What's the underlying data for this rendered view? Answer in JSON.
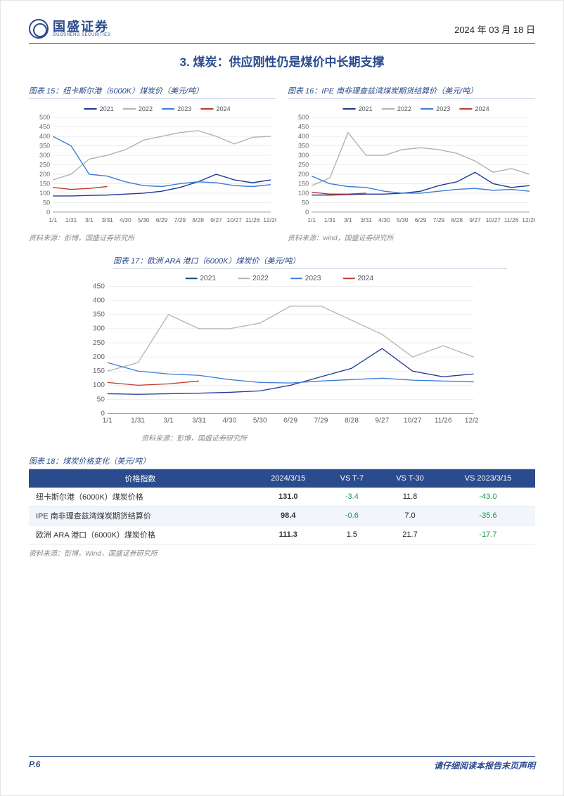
{
  "header": {
    "company_cn": "国盛证券",
    "company_en": "GUOSHENG SECURITIES",
    "date": "2024 年 03 月 18 日"
  },
  "section_title": "3. 煤炭：供应刚性仍是煤价中长期支撑",
  "charts_common": {
    "x_labels": [
      "1/1",
      "1/31",
      "3/1",
      "3/31",
      "4/30",
      "5/30",
      "6/29",
      "7/29",
      "8/28",
      "9/27",
      "10/27",
      "11/26",
      "12/26"
    ],
    "legend": [
      "2021",
      "2022",
      "2023",
      "2024"
    ],
    "colors": {
      "2021": "#1f3a93",
      "2022": "#b3b3b3",
      "2023": "#3b7dd8",
      "2024": "#c0392b"
    },
    "grid_color": "#e0e0e0",
    "tick_color": "#666666",
    "line_width": 1.4
  },
  "chart15": {
    "title": "图表 15：纽卡斯尔港（6000K）煤炭价（美元/吨）",
    "source": "资料来源：彭博，国盛证券研究所",
    "ylim": [
      0,
      500
    ],
    "ytick_step": 50,
    "series": {
      "2021": [
        85,
        85,
        88,
        90,
        95,
        100,
        110,
        130,
        160,
        200,
        170,
        155,
        170
      ],
      "2022": [
        170,
        200,
        280,
        300,
        330,
        380,
        400,
        420,
        430,
        400,
        360,
        395,
        400
      ],
      "2023": [
        400,
        350,
        200,
        190,
        160,
        140,
        135,
        150,
        160,
        155,
        140,
        135,
        145
      ],
      "2024": [
        130,
        120,
        125,
        135
      ]
    }
  },
  "chart16": {
    "title": "图表 16：IPE 南非理查兹湾煤炭期货结算价（美元/吨）",
    "source": "资料来源：wind，国盛证券研究所",
    "ylim": [
      0,
      500
    ],
    "ytick_step": 50,
    "series": {
      "2021": [
        90,
        90,
        92,
        95,
        95,
        100,
        110,
        140,
        160,
        210,
        150,
        130,
        140
      ],
      "2022": [
        140,
        180,
        420,
        300,
        300,
        330,
        340,
        330,
        310,
        270,
        210,
        230,
        200
      ],
      "2023": [
        190,
        150,
        135,
        130,
        110,
        100,
        100,
        110,
        120,
        125,
        115,
        120,
        110
      ],
      "2024": [
        105,
        95,
        95,
        100
      ]
    }
  },
  "chart17": {
    "title": "图表 17：欧洲 ARA 港口（6000K）煤炭价（美元/吨）",
    "source": "资料来源：彭博，国盛证券研究所",
    "ylim": [
      0,
      450
    ],
    "ytick_step": 50,
    "series": {
      "2021": [
        70,
        68,
        70,
        72,
        75,
        80,
        100,
        130,
        160,
        230,
        150,
        130,
        140
      ],
      "2022": [
        150,
        180,
        350,
        300,
        300,
        320,
        380,
        380,
        330,
        280,
        200,
        240,
        200
      ],
      "2023": [
        180,
        150,
        140,
        135,
        120,
        110,
        108,
        115,
        120,
        125,
        118,
        115,
        112
      ],
      "2024": [
        110,
        100,
        105,
        115
      ]
    }
  },
  "table18": {
    "title": "图表 18：煤炭价格变化（美元/吨）",
    "source": "资料来源：彭博，Wind，国盛证券研究所",
    "columns": [
      "价格指数",
      "2024/3/15",
      "VS T-7",
      "VS T-30",
      "VS 2023/3/15"
    ],
    "rows": [
      {
        "name": "纽卡斯尔港（6000K）煤炭价格",
        "v": "131.0",
        "d7": "-3.4",
        "d30": "11.8",
        "dy": "-43.0",
        "d7neg": true,
        "d30neg": false,
        "dyneg": true
      },
      {
        "name": "IPE 南非理查兹湾煤炭期货结算价",
        "v": "98.4",
        "d7": "-0.6",
        "d30": "7.0",
        "dy": "-35.6",
        "d7neg": true,
        "d30neg": false,
        "dyneg": true
      },
      {
        "name": "欧洲 ARA 港口（6000K）煤炭价格",
        "v": "111.3",
        "d7": "1.5",
        "d30": "21.7",
        "dy": "-17.7",
        "d7neg": false,
        "d30neg": false,
        "dyneg": true
      }
    ]
  },
  "footer": {
    "page": "P.6",
    "note": "请仔细阅读本报告末页声明"
  }
}
